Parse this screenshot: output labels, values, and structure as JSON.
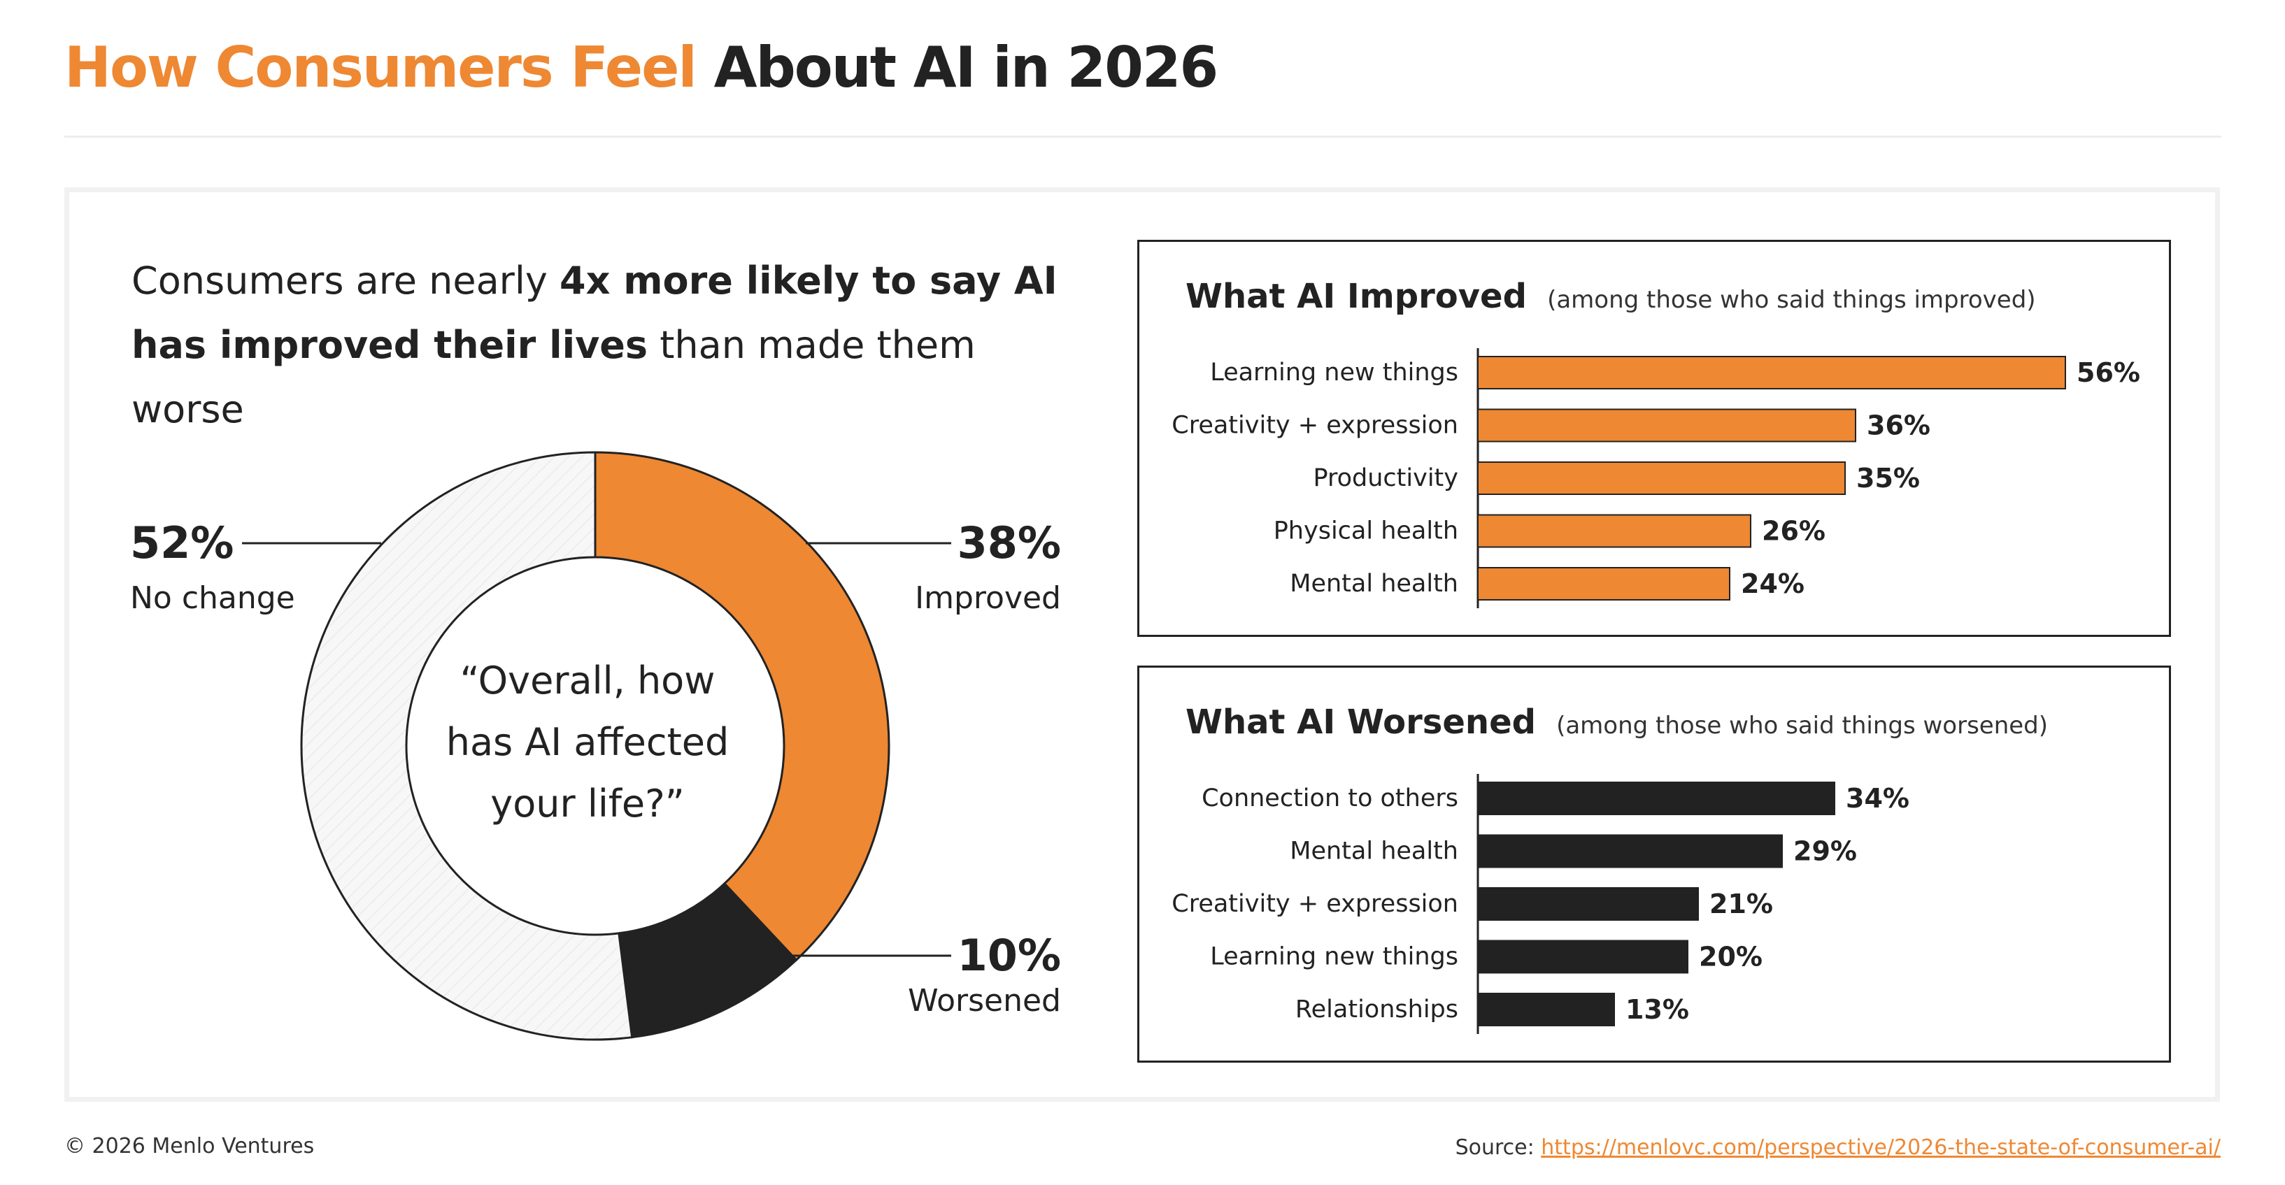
{
  "header": {
    "title_accent": "How Consumers Feel",
    "title_rest": "About AI in 2026"
  },
  "headline": {
    "part1": "Consumers are nearly ",
    "bold1": "4x more likely to say AI has improved their lives",
    "part2": " than made them worse"
  },
  "colors": {
    "accent": "#ee8833",
    "dark": "#222222",
    "neutral_hatch": "#f3f3f3"
  },
  "chart_data": [
    {
      "type": "pie",
      "subtype": "donut",
      "center_text": "“Overall, how has AI affected your life?”",
      "center_lines": [
        "“Overall, how",
        "has AI affected",
        "your life?”"
      ],
      "slices": [
        {
          "label": "Improved",
          "display": "38%",
          "value": 38,
          "color": "#ee8833"
        },
        {
          "label": "Worsened",
          "display": "10%",
          "value": 10,
          "color": "#222222"
        },
        {
          "label": "No change",
          "display": "52%",
          "value": 52,
          "color": "#f3f3f3"
        }
      ]
    },
    {
      "type": "bar",
      "orientation": "horizontal",
      "title": "What AI Improved",
      "subtitle": "(among those who said things improved)",
      "color": "#ee8833",
      "categories": [
        "Learning new things",
        "Creativity + expression",
        "Productivity",
        "Physical health",
        "Mental health"
      ],
      "values": [
        56,
        36,
        35,
        26,
        24
      ],
      "labels": [
        "56%",
        "36%",
        "35%",
        "26%",
        "24%"
      ]
    },
    {
      "type": "bar",
      "orientation": "horizontal",
      "title": "What AI Worsened",
      "subtitle": "(among those who said things worsened)",
      "color": "#222222",
      "categories": [
        "Connection to others",
        "Mental health",
        "Creativity + expression",
        "Learning new things",
        "Relationships"
      ],
      "values": [
        34,
        29,
        21,
        20,
        13
      ],
      "labels": [
        "34%",
        "29%",
        "21%",
        "20%",
        "13%"
      ]
    }
  ],
  "footer": {
    "copyright": "© 2026 Menlo Ventures",
    "source_label": "Source: ",
    "source_url": "https://menlovc.com/perspective/2026-the-state-of-consumer-ai/"
  }
}
